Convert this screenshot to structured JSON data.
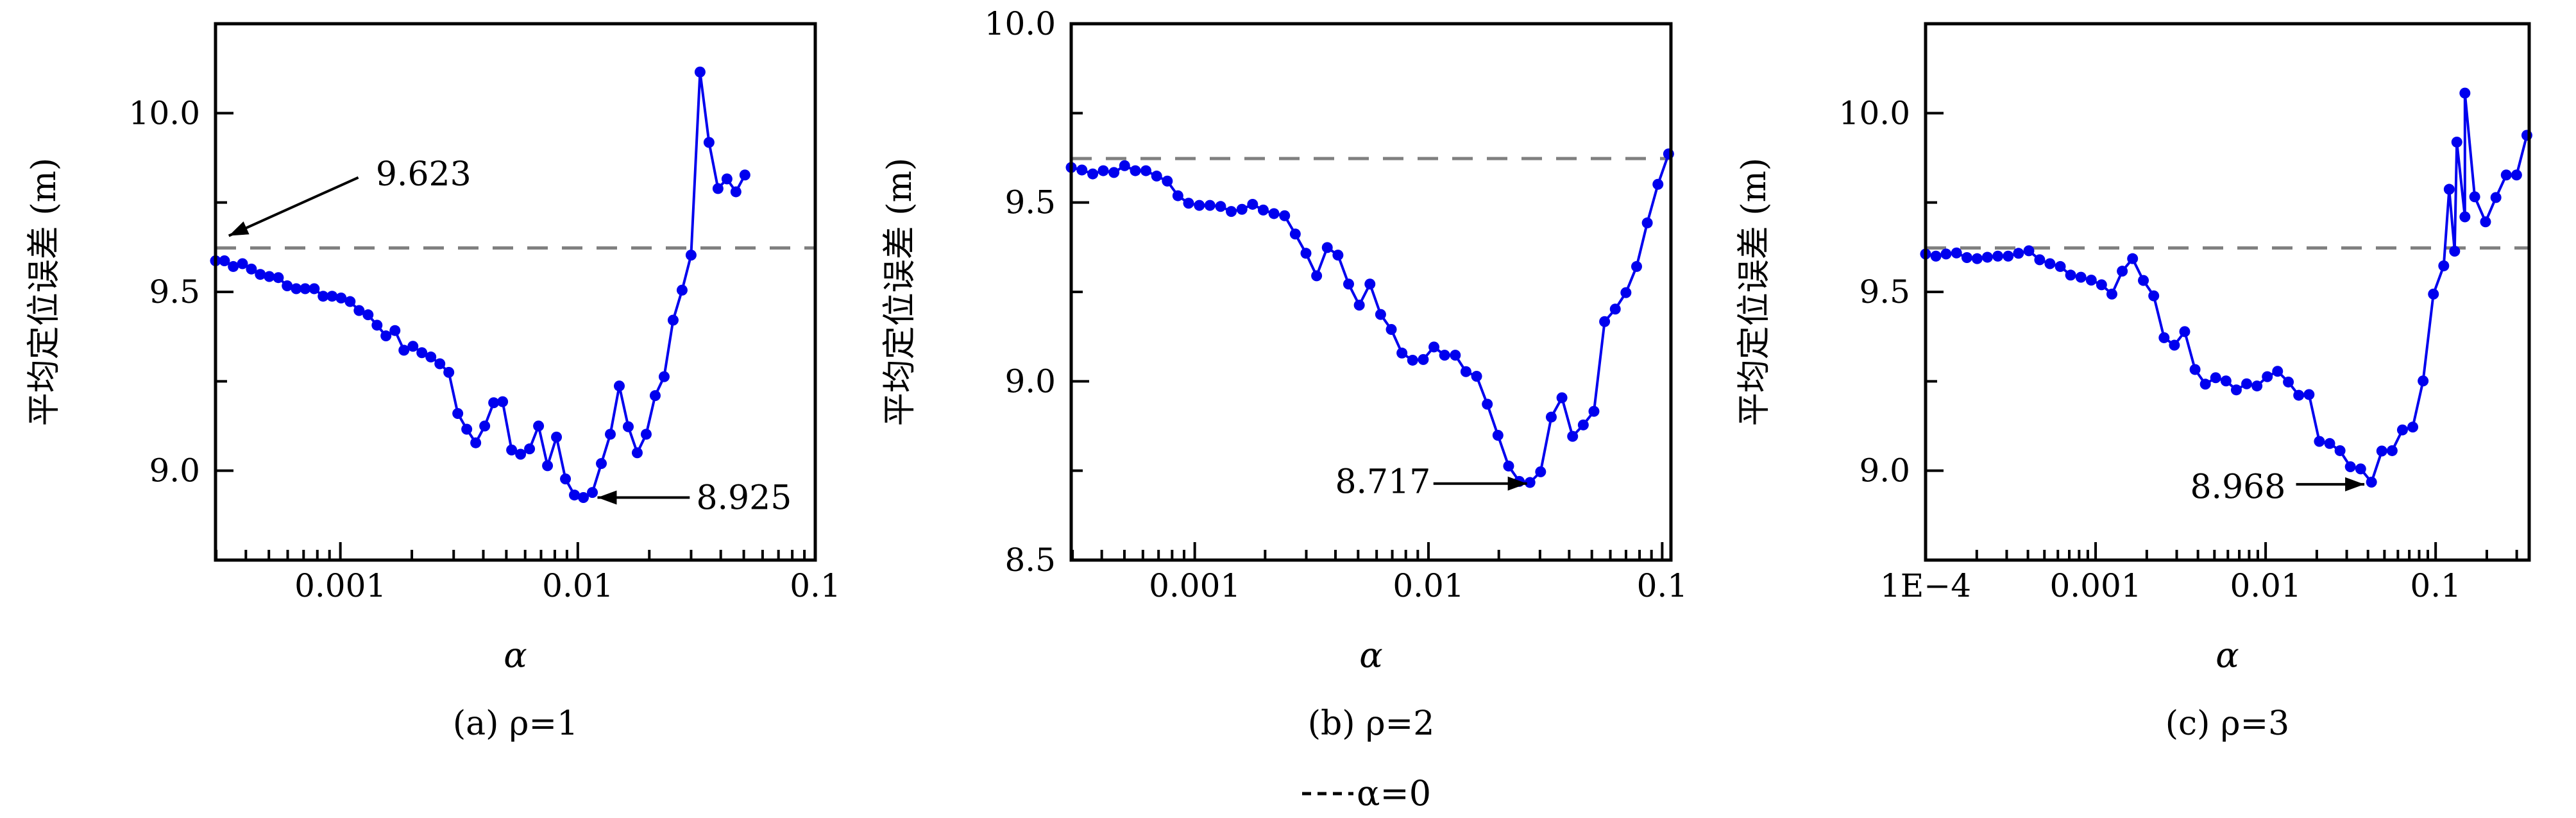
{
  "legend": {
    "label": "α=0",
    "style": "dashed",
    "color": "#808080"
  },
  "colors": {
    "series": "#0000ee",
    "reference": "#808080",
    "axis": "#000000"
  },
  "chart_data": [
    {
      "type": "line",
      "caption": "(a) ρ=1",
      "xlabel": "α",
      "ylabel": "平均定位误差 (m)",
      "xscale": "log",
      "xlim": [
        0.000298,
        0.1
      ],
      "ylim": [
        8.75,
        10.25
      ],
      "xticks": [
        {
          "value": 0.001,
          "label": "0.001"
        },
        {
          "value": 0.01,
          "label": "0.01"
        },
        {
          "value": 0.1,
          "label": "0.1"
        }
      ],
      "yticks": [
        {
          "value": 9.0,
          "label": "9.0"
        },
        {
          "value": 9.5,
          "label": "9.5"
        },
        {
          "value": 10.0,
          "label": "10.0"
        }
      ],
      "reference_line": {
        "y": 9.623,
        "label": "α=0"
      },
      "annotations": [
        {
          "text": "9.623",
          "text_at": [
            0.00224,
            9.83
          ],
          "arrow_from": [
            0.00119,
            9.82
          ],
          "arrow_to": [
            0.000339,
            9.657
          ]
        },
        {
          "text": "8.925",
          "text_at": [
            0.0501,
            8.925
          ],
          "arrow_from": [
            0.0296,
            8.925
          ],
          "arrow_to": [
            0.0121,
            8.925
          ]
        }
      ],
      "x": [
        0.000298,
        0.000325,
        0.000354,
        0.000387,
        0.000422,
        0.00046,
        0.000502,
        0.000548,
        0.000597,
        0.000652,
        0.000711,
        0.000776,
        0.000846,
        0.000923,
        0.001007,
        0.001099,
        0.001199,
        0.001308,
        0.001427,
        0.001556,
        0.001698,
        0.001852,
        0.002021,
        0.002204,
        0.002405,
        0.002624,
        0.002862,
        0.003122,
        0.003406,
        0.003716,
        0.004054,
        0.004422,
        0.004824,
        0.005263,
        0.005741,
        0.006263,
        0.006833,
        0.007454,
        0.008131,
        0.008871,
        0.009677,
        0.010557,
        0.011517,
        0.012564,
        0.013706,
        0.014952,
        0.016311,
        0.017794,
        0.019412,
        0.021176,
        0.023101,
        0.025202,
        0.027493,
        0.029992,
        0.032718,
        0.035693,
        0.038938,
        0.042477,
        0.046339,
        0.050552
      ],
      "y": [
        9.587,
        9.587,
        9.571,
        9.579,
        9.564,
        9.549,
        9.543,
        9.54,
        9.517,
        9.509,
        9.509,
        9.509,
        9.488,
        9.488,
        9.483,
        9.473,
        9.448,
        9.436,
        9.407,
        9.377,
        9.392,
        9.337,
        9.348,
        9.33,
        9.318,
        9.299,
        9.275,
        9.16,
        9.116,
        9.078,
        9.125,
        9.19,
        9.193,
        9.058,
        9.046,
        9.061,
        9.125,
        9.014,
        9.094,
        8.977,
        8.932,
        8.925,
        8.939,
        9.02,
        9.102,
        9.237,
        9.123,
        9.05,
        9.102,
        9.21,
        9.263,
        9.421,
        9.505,
        9.603,
        10.115,
        9.918,
        9.789,
        9.816,
        9.78,
        9.827
      ]
    },
    {
      "type": "line",
      "caption": "(b) ρ=2",
      "xlabel": "α",
      "ylabel": "平均定位误差 (m)",
      "xscale": "log",
      "xlim": [
        0.000296,
        0.109
      ],
      "ylim": [
        8.5,
        10.0
      ],
      "xticks": [
        {
          "value": 0.001,
          "label": "0.001"
        },
        {
          "value": 0.01,
          "label": "0.01"
        },
        {
          "value": 0.1,
          "label": "0.1"
        }
      ],
      "yticks": [
        {
          "value": 8.5,
          "label": "8.5"
        },
        {
          "value": 9.0,
          "label": "9.0"
        },
        {
          "value": 9.5,
          "label": "9.5"
        },
        {
          "value": 10.0,
          "label": "10.0"
        }
      ],
      "reference_line": {
        "y": 9.623,
        "label": "α=0"
      },
      "annotations": [
        {
          "text": "8.717",
          "text_at": [
            0.00638,
            8.72
          ],
          "arrow_from": [
            0.0105,
            8.714
          ],
          "arrow_to": [
            0.0264,
            8.714
          ]
        }
      ],
      "x": [
        0.000296,
        0.000329,
        0.000366,
        0.000406,
        0.000451,
        0.000501,
        0.000557,
        0.000618,
        0.000687,
        0.000763,
        0.000847,
        0.000941,
        0.001046,
        0.001161,
        0.00129,
        0.001433,
        0.001592,
        0.001768,
        0.001964,
        0.002182,
        0.002424,
        0.002692,
        0.002991,
        0.003322,
        0.00369,
        0.004099,
        0.004553,
        0.005058,
        0.005618,
        0.006241,
        0.006932,
        0.0077,
        0.008554,
        0.009502,
        0.010555,
        0.011724,
        0.013023,
        0.014466,
        0.016069,
        0.01785,
        0.019828,
        0.022025,
        0.024465,
        0.027176,
        0.030187,
        0.033532,
        0.037248,
        0.041375,
        0.04596,
        0.051053,
        0.05671,
        0.062994,
        0.069974,
        0.077728,
        0.086341,
        0.095908,
        0.106535
      ],
      "y": [
        9.598,
        9.591,
        9.58,
        9.589,
        9.584,
        9.603,
        9.589,
        9.589,
        9.574,
        9.56,
        9.519,
        9.498,
        9.492,
        9.492,
        9.489,
        9.475,
        9.481,
        9.495,
        9.479,
        9.469,
        9.463,
        9.412,
        9.358,
        9.295,
        9.374,
        9.353,
        9.272,
        9.213,
        9.272,
        9.187,
        9.145,
        9.079,
        9.059,
        9.061,
        9.096,
        9.073,
        9.073,
        9.027,
        9.014,
        8.936,
        8.849,
        8.763,
        8.72,
        8.717,
        8.747,
        8.9,
        8.954,
        8.846,
        8.878,
        8.916,
        9.167,
        9.202,
        9.248,
        9.321,
        9.443,
        9.551,
        9.636
      ]
    },
    {
      "type": "line",
      "caption": "(c) ρ=3",
      "xlabel": "α",
      "ylabel": "平均定位误差 (m)",
      "xscale": "log",
      "xlim": [
        0.0001,
        0.355
      ],
      "ylim": [
        8.75,
        10.25
      ],
      "xticks": [
        {
          "value": 0.0001,
          "label": "1E−4"
        },
        {
          "value": 0.001,
          "label": "0.001"
        },
        {
          "value": 0.01,
          "label": "0.01"
        },
        {
          "value": 0.1,
          "label": "0.1"
        }
      ],
      "yticks": [
        {
          "value": 9.0,
          "label": "9.0"
        },
        {
          "value": 9.5,
          "label": "9.5"
        },
        {
          "value": 10.0,
          "label": "10.0"
        }
      ],
      "reference_line": {
        "y": 9.623,
        "label": "α=0"
      },
      "annotations": [
        {
          "text": "8.968",
          "text_at": [
            0.00687,
            8.955
          ],
          "arrow_from": [
            0.0151,
            8.962
          ],
          "arrow_to": [
            0.0381,
            8.962
          ]
        }
      ],
      "x": [
        0.0001,
        0.000115,
        0.000132,
        0.000152,
        0.000175,
        0.000201,
        0.000231,
        0.000266,
        0.000306,
        0.000352,
        0.000405,
        0.000469,
        0.000539,
        0.00062,
        0.000713,
        0.00082,
        0.000943,
        0.001084,
        0.001247,
        0.001435,
        0.00165,
        0.00191,
        0.002198,
        0.002528,
        0.002907,
        0.003343,
        0.003845,
        0.004422,
        0.005085,
        0.005848,
        0.006726,
        0.007735,
        0.008895,
        0.01023,
        0.01176,
        0.01361,
        0.01566,
        0.01801,
        0.02071,
        0.02382,
        0.0274,
        0.03151,
        0.03623,
        0.04195,
        0.04825,
        0.05549,
        0.06381,
        0.07339,
        0.0844,
        0.09707,
        0.1116,
        0.1202,
        0.1294,
        0.1333,
        0.1487,
        0.1487,
        0.1698,
        0.1966,
        0.2263,
        0.2603,
        0.2993,
        0.3442
      ],
      "y": [
        9.606,
        9.6,
        9.606,
        9.609,
        9.596,
        9.593,
        9.597,
        9.6,
        9.6,
        9.608,
        9.615,
        9.59,
        9.579,
        9.571,
        9.547,
        9.541,
        9.533,
        9.52,
        9.494,
        9.558,
        9.593,
        9.532,
        9.489,
        9.372,
        9.351,
        9.389,
        9.283,
        9.242,
        9.26,
        9.251,
        9.226,
        9.243,
        9.237,
        9.263,
        9.278,
        9.248,
        9.211,
        9.213,
        9.082,
        9.076,
        9.056,
        9.011,
        9.005,
        8.968,
        9.055,
        9.056,
        9.114,
        9.122,
        9.251,
        9.494,
        9.573,
        9.787,
        9.614,
        9.919,
        9.71,
        10.056,
        9.766,
        9.696,
        9.764,
        9.827,
        9.827,
        9.938
      ]
    }
  ]
}
